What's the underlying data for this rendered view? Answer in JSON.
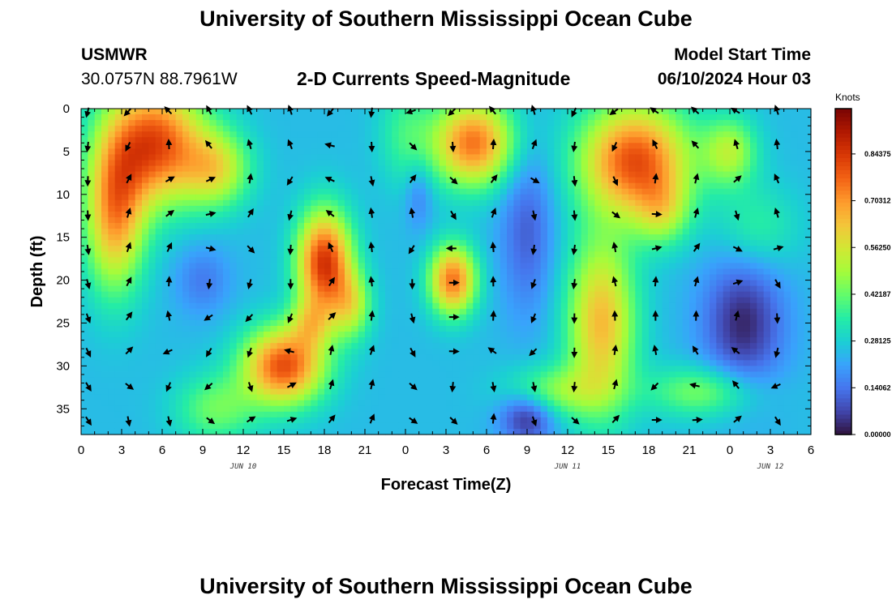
{
  "header": {
    "title": "University of Southern Mississippi Ocean Cube",
    "station": "USMWR",
    "coords": "30.0757N  88.7961W",
    "subtitle": "2-D Currents Speed-Magnitude",
    "model_start_label": "Model Start Time",
    "model_start_value": "06/10/2024 Hour 03"
  },
  "footer": {
    "title_repeat": "University of Southern Mississippi Ocean Cube"
  },
  "chart_data": {
    "type": "heatmap",
    "title": "2-D Currents Speed-Magnitude",
    "xlabel": "Forecast Time(Z)",
    "ylabel": "Depth (ft)",
    "x_range_hours": [
      0,
      54
    ],
    "x_tick_labels": [
      "0",
      "3",
      "6",
      "9",
      "12",
      "15",
      "18",
      "21",
      "0",
      "3",
      "6",
      "9",
      "12",
      "15",
      "18",
      "21",
      "0",
      "3",
      "6"
    ],
    "date_labels": [
      {
        "text": "JUN 10",
        "hour": 12
      },
      {
        "text": "JUN 11",
        "hour": 36
      },
      {
        "text": "JUN 12",
        "hour": 51
      }
    ],
    "y_range_ft": [
      0,
      38
    ],
    "y_ticks": [
      0,
      5,
      10,
      15,
      20,
      25,
      30,
      35
    ],
    "colorbar": {
      "unit": "Knots",
      "range": [
        0,
        0.98
      ],
      "tick_values": [
        0.84375,
        0.70312,
        0.5625,
        0.42187,
        0.28125,
        0.14062,
        0.0
      ],
      "tick_labels": [
        "0.84375",
        "0.70312",
        "0.56250",
        "0.42187",
        "0.28125",
        "0.14062",
        "0.00000"
      ],
      "colors": [
        "#30123b",
        "#4145ab",
        "#4675ed",
        "#39a2fc",
        "#1bcfd4",
        "#24eca6",
        "#61fc6c",
        "#a4fc3b",
        "#d1e834",
        "#f3c63a",
        "#fe9b2d",
        "#f36315",
        "#d93806",
        "#b11901",
        "#7a0403"
      ]
    },
    "blobs": [
      {
        "hour": 5.5,
        "depth": 4,
        "sh": 3.5,
        "sd": 7,
        "amp": 0.55
      },
      {
        "hour": 2.5,
        "depth": 12,
        "sh": 2.2,
        "sd": 9,
        "amp": 0.45
      },
      {
        "hour": 10,
        "depth": 7,
        "sh": 2.5,
        "sd": 4.5,
        "amp": 0.3
      },
      {
        "hour": 18,
        "depth": 18,
        "sh": 2,
        "sd": 6,
        "amp": 0.6
      },
      {
        "hour": 20,
        "depth": 23,
        "sh": 1.5,
        "sd": 4,
        "amp": 0.25
      },
      {
        "hour": 15,
        "depth": 30,
        "sh": 3,
        "sd": 4.5,
        "amp": 0.55
      },
      {
        "hour": 17,
        "depth": 25,
        "sh": 1.5,
        "sd": 3,
        "amp": 0.2
      },
      {
        "hour": 27.5,
        "depth": 20,
        "sh": 1.7,
        "sd": 4,
        "amp": 0.5
      },
      {
        "hour": 29,
        "depth": 4,
        "sh": 3,
        "sd": 5,
        "amp": 0.5
      },
      {
        "hour": 38.5,
        "depth": 25,
        "sh": 2.5,
        "sd": 10,
        "amp": 0.4
      },
      {
        "hour": 41,
        "depth": 6,
        "sh": 4,
        "sd": 6.5,
        "amp": 0.55
      },
      {
        "hour": 43,
        "depth": 12,
        "sh": 2,
        "sd": 4,
        "amp": 0.2
      },
      {
        "hour": 48,
        "depth": 5,
        "sh": 2,
        "sd": 4,
        "amp": 0.25
      },
      {
        "hour": 35,
        "depth": 33,
        "sh": 3.5,
        "sd": 3,
        "amp": 0.2
      },
      {
        "hour": 46,
        "depth": 33,
        "sh": 4,
        "sd": 3,
        "amp": 0.2
      },
      {
        "hour": 10,
        "depth": 35,
        "sh": 3,
        "sd": 4,
        "amp": 0.18
      },
      {
        "hour": 50,
        "depth": 14,
        "sh": 3,
        "sd": 5,
        "amp": 0.12
      },
      {
        "hour": 24,
        "depth": 3,
        "sh": 2,
        "sd": 6,
        "amp": 0.12
      }
    ],
    "base_speed": 0.25,
    "minima": [
      {
        "hour": 33,
        "depth": 36,
        "sh": 2,
        "sd": 3,
        "amp": 0.22
      },
      {
        "hour": 33,
        "depth": 14,
        "sh": 2,
        "sd": 10,
        "amp": 0.14
      },
      {
        "hour": 25,
        "depth": 10,
        "sh": 1,
        "sd": 4,
        "amp": 0.1
      },
      {
        "hour": 49,
        "depth": 25,
        "sh": 3,
        "sd": 8,
        "amp": 0.22
      },
      {
        "hour": 9,
        "depth": 20,
        "sh": 2,
        "sd": 4,
        "amp": 0.1
      }
    ]
  }
}
